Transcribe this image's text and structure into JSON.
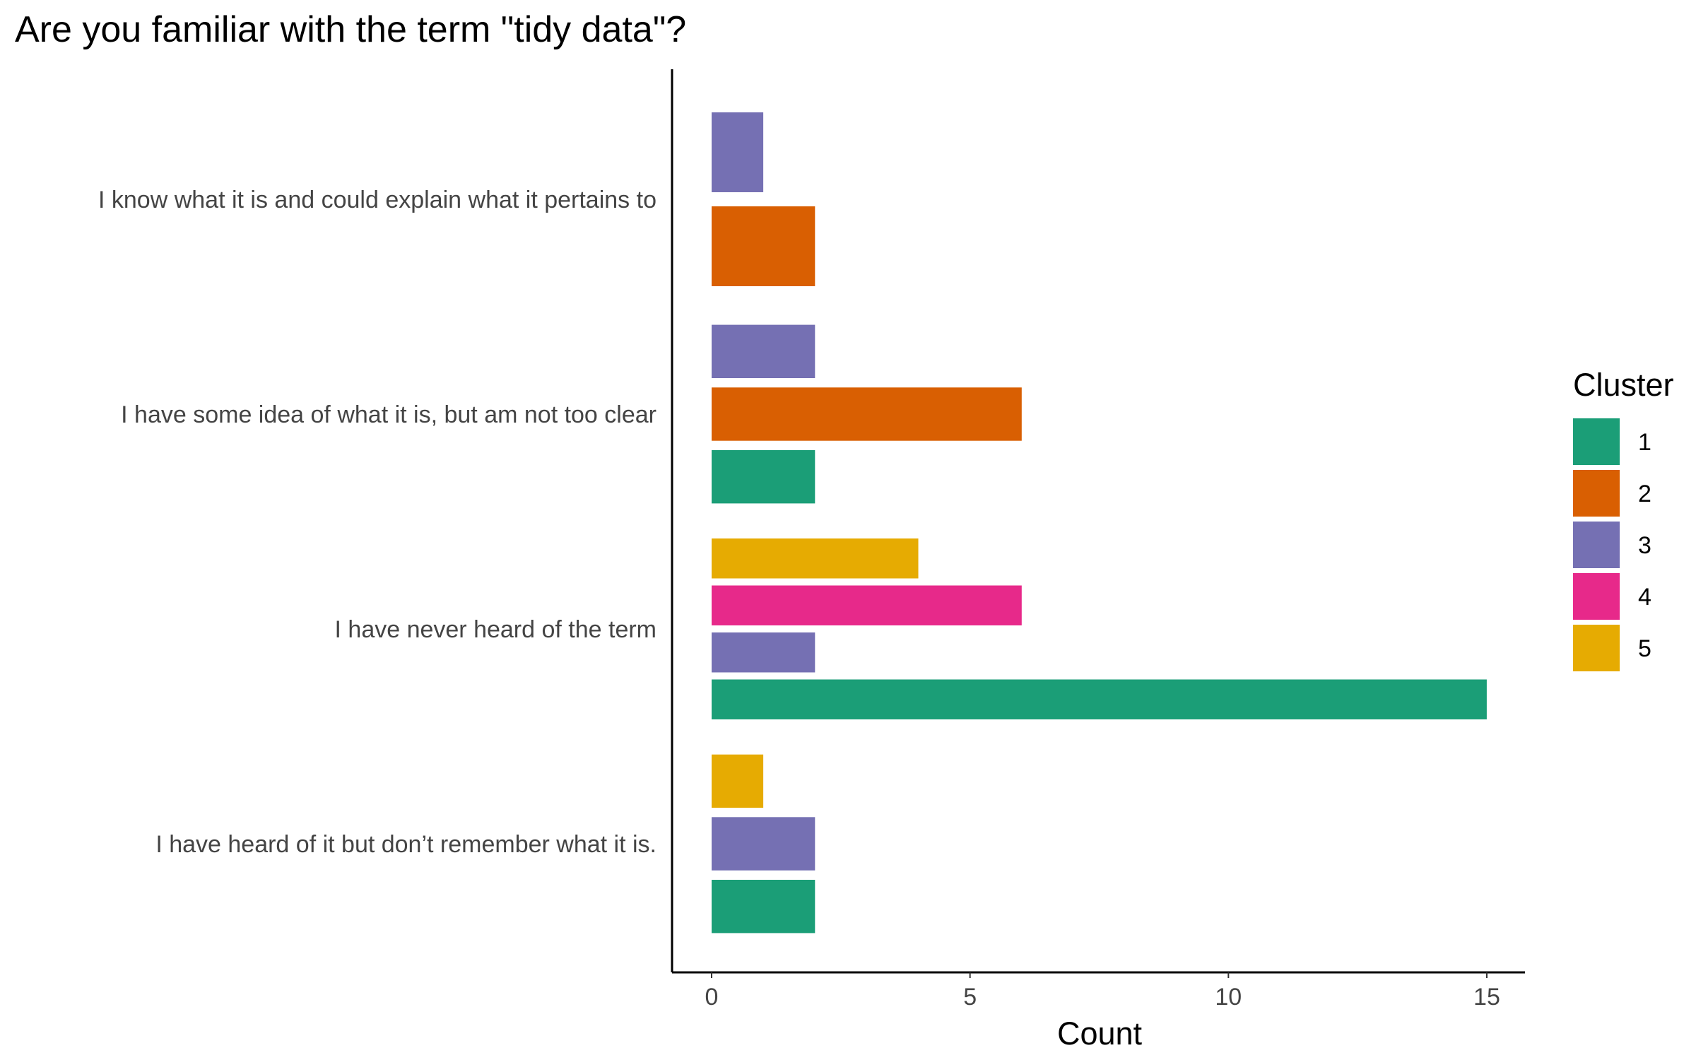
{
  "chart_data": {
    "type": "bar",
    "orientation": "horizontal",
    "title": "Are you familiar with the term \"tidy data\"?",
    "xlabel": "Count",
    "ylabel": "",
    "xlim": [
      -0.75,
      15.75
    ],
    "xticks": [
      0,
      5,
      10,
      15
    ],
    "grid": false,
    "legend_position": "right",
    "legend_title": "Cluster",
    "series": [
      {
        "name": "1",
        "color": "#1B9E77"
      },
      {
        "name": "2",
        "color": "#D95F02"
      },
      {
        "name": "3",
        "color": "#7570B3"
      },
      {
        "name": "4",
        "color": "#E7298A"
      },
      {
        "name": "5",
        "color": "#E6AB02"
      }
    ],
    "categories": [
      {
        "label": "I know what it is and could explain what it pertains to",
        "bars": [
          {
            "cluster": "2",
            "value": 2
          },
          {
            "cluster": "3",
            "value": 1
          }
        ]
      },
      {
        "label": "I have some idea of what it is, but am not too clear",
        "bars": [
          {
            "cluster": "1",
            "value": 2
          },
          {
            "cluster": "2",
            "value": 6
          },
          {
            "cluster": "3",
            "value": 2
          }
        ]
      },
      {
        "label": "I have never heard of the term",
        "bars": [
          {
            "cluster": "1",
            "value": 15
          },
          {
            "cluster": "3",
            "value": 2
          },
          {
            "cluster": "4",
            "value": 6
          },
          {
            "cluster": "5",
            "value": 4
          }
        ]
      },
      {
        "label": "I have heard of it but don’t remember what it is.",
        "bars": [
          {
            "cluster": "1",
            "value": 2
          },
          {
            "cluster": "3",
            "value": 2
          },
          {
            "cluster": "5",
            "value": 1
          }
        ]
      }
    ]
  }
}
